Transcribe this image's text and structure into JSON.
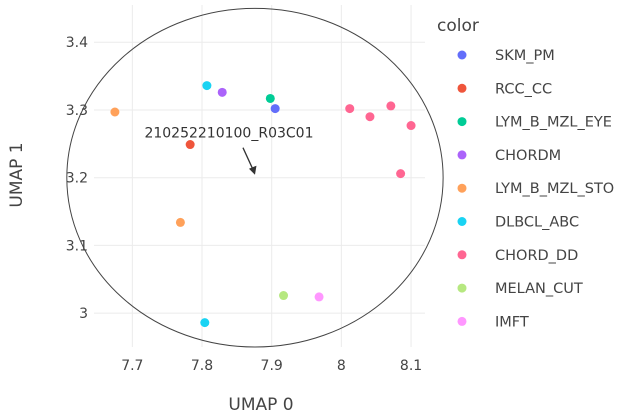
{
  "chart_data": {
    "type": "scatter",
    "xlabel": "UMAP 0",
    "ylabel": "UMAP 1",
    "xlim": [
      7.645,
      8.12
    ],
    "ylim": [
      2.95,
      3.455
    ],
    "x_ticks": [
      7.7,
      7.8,
      7.9,
      8.0,
      8.1
    ],
    "x_tick_labels": [
      "7.7",
      "7.8",
      "7.9",
      "8",
      "8.1"
    ],
    "y_ticks": [
      3.0,
      3.1,
      3.2,
      3.3,
      3.4
    ],
    "y_tick_labels": [
      "3",
      "3.1",
      "3.2",
      "3.3",
      "3.4"
    ],
    "grid": true,
    "plot_background": "#ffffff",
    "grid_color": "#ebebeb",
    "legend": {
      "title": "color",
      "position": "right"
    },
    "series": [
      {
        "name": "SKM_PM",
        "color": "#636efa",
        "points": [
          [
            7.905,
            3.302
          ]
        ]
      },
      {
        "name": "RCC_CC",
        "color": "#ef553b",
        "points": [
          [
            7.783,
            3.249
          ]
        ]
      },
      {
        "name": "LYM_B_MZL_EYE",
        "color": "#00cc96",
        "points": [
          [
            7.898,
            3.317
          ]
        ]
      },
      {
        "name": "CHORDM",
        "color": "#ab63fa",
        "points": [
          [
            7.829,
            3.326
          ]
        ]
      },
      {
        "name": "LYM_B_MZL_STO",
        "color": "#ffa15a",
        "points": [
          [
            7.675,
            3.297
          ],
          [
            7.769,
            3.134
          ]
        ]
      },
      {
        "name": "DLBCL_ABC",
        "color": "#19d3f3",
        "points": [
          [
            7.807,
            3.336
          ],
          [
            7.804,
            2.986
          ]
        ]
      },
      {
        "name": "CHORD_DD",
        "color": "#ff6692",
        "points": [
          [
            8.012,
            3.302
          ],
          [
            8.041,
            3.29
          ],
          [
            8.071,
            3.306
          ],
          [
            8.1,
            3.277
          ],
          [
            8.085,
            3.206
          ]
        ]
      },
      {
        "name": "MELAN_CUT",
        "color": "#b6e880",
        "points": [
          [
            7.917,
            3.026
          ]
        ]
      },
      {
        "name": "IMFT",
        "color": "#ff97ff",
        "points": [
          [
            7.968,
            3.024
          ]
        ]
      }
    ],
    "annotation": {
      "text": "210252210100_R03C01",
      "x": 7.876,
      "y": 3.2
    },
    "circle": {
      "center_x": 7.876,
      "center_y": 3.2,
      "radius_x": 0.27,
      "radius_y": 0.25
    }
  }
}
